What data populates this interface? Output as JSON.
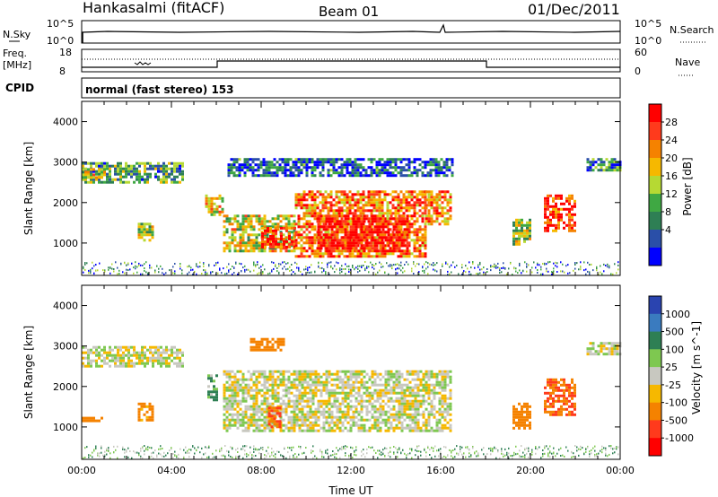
{
  "header": {
    "station": "Hankasalmi (fitACF)",
    "beam": "Beam 01",
    "date": "01/Dec/2011"
  },
  "strips": {
    "nsky_label": "N.Sky",
    "nsearch_label": "N.Search",
    "freq_label_line1": "Freq.",
    "freq_label_line2": "[MHz]",
    "nave_label": "Nave",
    "cpid_label": "CPID",
    "nsky_ticks": [
      "10^5",
      "10^0"
    ],
    "freq_ticks": [
      "18",
      "8"
    ],
    "nave_ticks": [
      "60",
      "0"
    ],
    "cpid_text": "normal (fast stereo) 153"
  },
  "chart_data": [
    {
      "type": "heatmap",
      "panel": "power",
      "xlabel": "",
      "ylabel": "Slant Range [km]",
      "colorbar_label": "Power [dB]",
      "xlim_hours": [
        0,
        24
      ],
      "ylim_km": [
        200,
        4500
      ],
      "yticks": [
        "4000",
        "3000",
        "2000",
        "1000"
      ],
      "colorbar_ticks": [
        "28",
        "24",
        "20",
        "16",
        "12",
        "8",
        "4"
      ],
      "colors": [
        "#0000ff",
        "#2a4fa8",
        "#2e7f54",
        "#3fa843",
        "#b6d933",
        "#f6b800",
        "#f58200",
        "#ff3a1c",
        "#ff0000"
      ],
      "regions": [
        {
          "t0": 0.0,
          "t1": 4.5,
          "r0": 2500,
          "r1": 3000,
          "level": 0.35
        },
        {
          "t0": 0.0,
          "t1": 1.0,
          "r0": 2600,
          "r1": 2850,
          "level": 0.55
        },
        {
          "t0": 2.5,
          "t1": 3.2,
          "r0": 1100,
          "r1": 1500,
          "level": 0.45
        },
        {
          "t0": 5.5,
          "t1": 6.3,
          "r0": 1700,
          "r1": 2200,
          "level": 0.6
        },
        {
          "t0": 6.3,
          "t1": 9.5,
          "r0": 800,
          "r1": 1700,
          "level": 0.55
        },
        {
          "t0": 8.0,
          "t1": 9.5,
          "r0": 900,
          "r1": 1400,
          "level": 0.85
        },
        {
          "t0": 9.5,
          "t1": 15.3,
          "r0": 700,
          "r1": 2300,
          "level": 0.75
        },
        {
          "t0": 10.5,
          "t1": 14.5,
          "r0": 800,
          "r1": 1700,
          "level": 0.97
        },
        {
          "t0": 15.3,
          "t1": 16.5,
          "r0": 1500,
          "r1": 2300,
          "level": 0.7
        },
        {
          "t0": 6.5,
          "t1": 16.5,
          "r0": 2700,
          "r1": 3100,
          "level": 0.2
        },
        {
          "t0": 19.2,
          "t1": 20.0,
          "r0": 1000,
          "r1": 1600,
          "level": 0.45
        },
        {
          "t0": 20.6,
          "t1": 22.0,
          "r0": 1300,
          "r1": 2200,
          "level": 0.85
        },
        {
          "t0": 22.5,
          "t1": 24.0,
          "r0": 2800,
          "r1": 3100,
          "level": 0.3
        }
      ]
    },
    {
      "type": "heatmap",
      "panel": "velocity",
      "xlabel": "Time UT",
      "ylabel": "Slant Range [km]",
      "colorbar_label": "Velocity [m s^-1]",
      "xlim_hours": [
        0,
        24
      ],
      "ylim_km": [
        200,
        4500
      ],
      "yticks": [
        "4000",
        "3000",
        "2000",
        "1000"
      ],
      "xticks": [
        "00:00",
        "04:00",
        "08:00",
        "12:00",
        "16:00",
        "20:00",
        "00:00"
      ],
      "colorbar_ticks": [
        "1000",
        "500",
        "100",
        "25",
        "-25",
        "-100",
        "-500",
        "-1000"
      ],
      "colors": [
        "#2a44b0",
        "#3a7bbf",
        "#2e7f54",
        "#7ec850",
        "#c8c8c0",
        "#f6b800",
        "#f58200",
        "#ff3a1c",
        "#ff0000"
      ],
      "regions": [
        {
          "t0": 0.0,
          "t1": 4.5,
          "r0": 2500,
          "r1": 3000,
          "value": 0
        },
        {
          "t0": 0.0,
          "t1": 1.0,
          "r0": 1150,
          "r1": 1250,
          "value": -150
        },
        {
          "t0": 2.5,
          "t1": 3.2,
          "r0": 1200,
          "r1": 1600,
          "value": -100
        },
        {
          "t0": 5.6,
          "t1": 6.0,
          "r0": 1700,
          "r1": 2300,
          "value": 80
        },
        {
          "t0": 6.3,
          "t1": 16.5,
          "r0": 900,
          "r1": 2400,
          "value": 0
        },
        {
          "t0": 7.5,
          "t1": 9.0,
          "r0": 2900,
          "r1": 3200,
          "value": -150
        },
        {
          "t0": 8.3,
          "t1": 8.8,
          "r0": 1000,
          "r1": 1500,
          "value": -300
        },
        {
          "t0": 19.2,
          "t1": 20.0,
          "r0": 1000,
          "r1": 1600,
          "value": -200
        },
        {
          "t0": 20.6,
          "t1": 22.0,
          "r0": 1300,
          "r1": 2200,
          "value": -300
        },
        {
          "t0": 22.5,
          "t1": 24.0,
          "r0": 2800,
          "r1": 3100,
          "value": 0
        }
      ]
    }
  ]
}
